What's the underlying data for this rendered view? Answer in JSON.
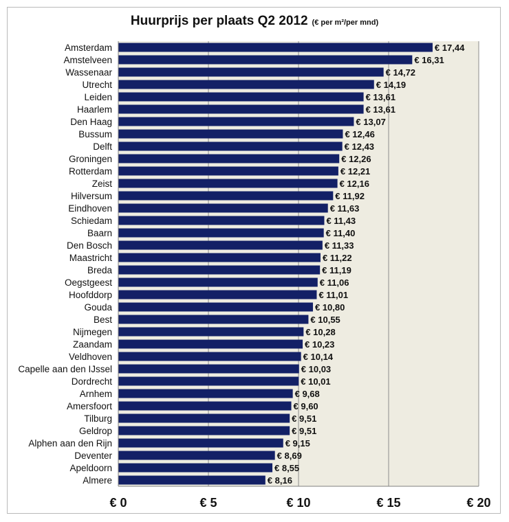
{
  "chart_data": {
    "type": "bar",
    "orientation": "horizontal",
    "title": "Huurprijs per plaats Q2 2012",
    "subtitle": "(€ per m²/per mnd)",
    "xlabel": "",
    "ylabel": "",
    "xlim": [
      0,
      20
    ],
    "ticks": [
      {
        "value": 0,
        "label": "€ 0"
      },
      {
        "value": 5,
        "label": "€ 5"
      },
      {
        "value": 10,
        "label": "€ 10"
      },
      {
        "value": 15,
        "label": "€ 15"
      },
      {
        "value": 20,
        "label": "€ 20"
      }
    ],
    "grid": true,
    "legend": "none",
    "categories": [
      "Amsterdam",
      "Amstelveen",
      "Wassenaar",
      "Utrecht",
      "Leiden",
      "Haarlem",
      "Den Haag",
      "Bussum",
      "Delft",
      "Groningen",
      "Rotterdam",
      "Zeist",
      "Hilversum",
      "Eindhoven",
      "Schiedam",
      "Baarn",
      "Den Bosch",
      "Maastricht",
      "Breda",
      "Oegstgeest",
      "Hoofddorp",
      "Gouda",
      "Best",
      "Nijmegen",
      "Zaandam",
      "Veldhoven",
      "Capelle aan den IJssel",
      "Dordrecht",
      "Arnhem",
      "Amersfoort",
      "Tilburg",
      "Geldrop",
      "Alphen aan den Rijn",
      "Deventer",
      "Apeldoorn",
      "Almere"
    ],
    "values": [
      17.44,
      16.31,
      14.72,
      14.19,
      13.61,
      13.61,
      13.07,
      12.46,
      12.43,
      12.26,
      12.21,
      12.16,
      11.92,
      11.63,
      11.43,
      11.4,
      11.33,
      11.22,
      11.19,
      11.06,
      11.01,
      10.8,
      10.55,
      10.28,
      10.23,
      10.14,
      10.03,
      10.01,
      9.68,
      9.6,
      9.51,
      9.51,
      9.15,
      8.69,
      8.55,
      8.16
    ],
    "value_labels": [
      "€ 17,44",
      "€ 16,31",
      "€ 14,72",
      "€ 14,19",
      "€ 13,61",
      "€ 13,61",
      "€ 13,07",
      "€ 12,46",
      "€ 12,43",
      "€ 12,26",
      "€ 12,21",
      "€ 12,16",
      "€ 11,92",
      "€ 11,63",
      "€ 11,43",
      "€ 11,40",
      "€ 11,33",
      "€ 11,22",
      "€ 11,19",
      "€ 11,06",
      "€ 11,01",
      "€ 10,80",
      "€ 10,55",
      "€ 10,28",
      "€ 10,23",
      "€ 10,14",
      "€ 10,03",
      "€ 10,01",
      "€ 9,68",
      "€ 9,60",
      "€ 9,51",
      "€ 9,51",
      "€ 9,15",
      "€ 8,69",
      "€ 8,55",
      "€ 8,16"
    ],
    "colors": {
      "bar": "#132066",
      "plot_background": "#eeece1",
      "gridline": "#8c8c8c"
    }
  }
}
